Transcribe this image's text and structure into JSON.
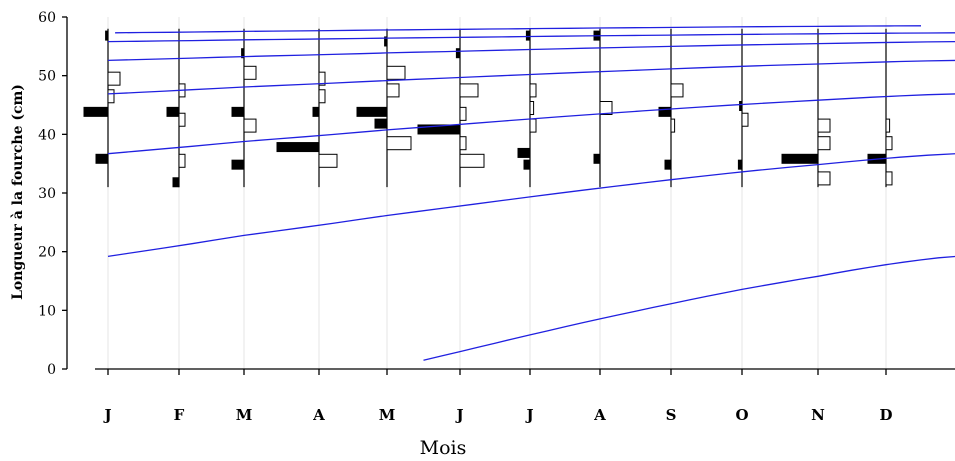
{
  "chart_data": {
    "type": "histogram-timeseries",
    "ylabel": "Longueur à la fourche (cm)",
    "xlabel": "Mois",
    "ylim": [
      0,
      60
    ],
    "yticks": [
      0,
      10,
      20,
      30,
      40,
      50,
      60
    ],
    "grid": "vertical",
    "months": [
      "J",
      "F",
      "M",
      "A",
      "M",
      "J",
      "J",
      "A",
      "S",
      "O",
      "N",
      "D"
    ],
    "histograms": [
      {
        "month": "J",
        "bins": [
          [
            32,
            0
          ],
          [
            36,
            -1
          ],
          [
            44,
            -2
          ],
          [
            47,
            0.5
          ],
          [
            50,
            1
          ],
          [
            57,
            -0.2
          ]
        ],
        "y_extent": [
          31,
          58
        ]
      },
      {
        "month": "F",
        "bins": [
          [
            32,
            -0.5
          ],
          [
            36,
            0.5
          ],
          [
            43,
            0.5
          ],
          [
            44,
            -1
          ],
          [
            48,
            0.5
          ]
        ],
        "y_extent": [
          31,
          58
        ]
      },
      {
        "month": "M",
        "bins": [
          [
            35,
            -1
          ],
          [
            36,
            0
          ],
          [
            42,
            1
          ],
          [
            44,
            -1
          ],
          [
            51,
            1
          ],
          [
            54,
            -0.2
          ]
        ],
        "y_extent": [
          31,
          58
        ]
      },
      {
        "month": "A",
        "bins": [
          [
            36,
            1.5
          ],
          [
            38,
            -3.5
          ],
          [
            39,
            0
          ],
          [
            44,
            -0.5
          ],
          [
            47,
            0.5
          ],
          [
            50,
            0.5
          ]
        ],
        "y_extent": [
          31,
          58
        ]
      },
      {
        "month": "M",
        "bins": [
          [
            39,
            2
          ],
          [
            42,
            -1
          ],
          [
            44,
            -2.5
          ],
          [
            48,
            1
          ],
          [
            51,
            1.5
          ],
          [
            56,
            -0.2
          ]
        ],
        "y_extent": [
          31,
          58
        ]
      },
      {
        "month": "J",
        "bins": [
          [
            36,
            2
          ],
          [
            39,
            0.5
          ],
          [
            41,
            -3.5
          ],
          [
            44,
            0.5
          ],
          [
            48,
            1.5
          ],
          [
            54,
            -0.3
          ]
        ],
        "y_extent": [
          31,
          58
        ]
      },
      {
        "month": "J",
        "bins": [
          [
            35,
            -0.5
          ],
          [
            37,
            -1
          ],
          [
            42,
            0.5
          ],
          [
            45,
            0.3
          ],
          [
            48,
            0.5
          ],
          [
            57,
            -0.3
          ]
        ],
        "y_extent": [
          31,
          58
        ]
      },
      {
        "month": "A",
        "bins": [
          [
            36,
            -0.5
          ],
          [
            45,
            1
          ],
          [
            57,
            -0.5
          ]
        ],
        "y_extent": [
          31,
          58
        ]
      },
      {
        "month": "S",
        "bins": [
          [
            35,
            -0.5
          ],
          [
            42,
            0.3
          ],
          [
            44,
            -1
          ],
          [
            48,
            1
          ]
        ],
        "y_extent": [
          31,
          58
        ]
      },
      {
        "month": "O",
        "bins": [
          [
            35,
            -0.3
          ],
          [
            43,
            0.5
          ],
          [
            45,
            -0.2
          ]
        ],
        "y_extent": [
          31,
          58
        ]
      },
      {
        "month": "N",
        "bins": [
          [
            33,
            1
          ],
          [
            36,
            -3
          ],
          [
            39,
            1
          ],
          [
            42,
            1
          ]
        ],
        "y_extent": [
          31,
          58
        ]
      },
      {
        "month": "D",
        "bins": [
          [
            33,
            0.5
          ],
          [
            36,
            -1.5
          ],
          [
            39,
            0.5
          ],
          [
            42,
            0.3
          ]
        ],
        "y_extent": [
          31,
          58
        ]
      }
    ],
    "growth_curves": [
      {
        "x": [
          4.5,
          12.0
        ],
        "y": [
          1.5,
          19.2
        ]
      },
      {
        "x": [
          0,
          12.0
        ],
        "y": [
          19.2,
          36.7
        ]
      },
      {
        "x": [
          0,
          12.0
        ],
        "y": [
          36.7,
          46.9
        ]
      },
      {
        "x": [
          0,
          12.0
        ],
        "y": [
          46.9,
          52.6
        ]
      },
      {
        "x": [
          0,
          12.0
        ],
        "y": [
          52.6,
          55.8
        ]
      },
      {
        "x": [
          0,
          12.0
        ],
        "y": [
          55.8,
          57.3
        ]
      },
      {
        "x": [
          0.1,
          11.5
        ],
        "y": [
          57.3,
          58.5
        ]
      }
    ],
    "series_color": "#2020e0"
  }
}
